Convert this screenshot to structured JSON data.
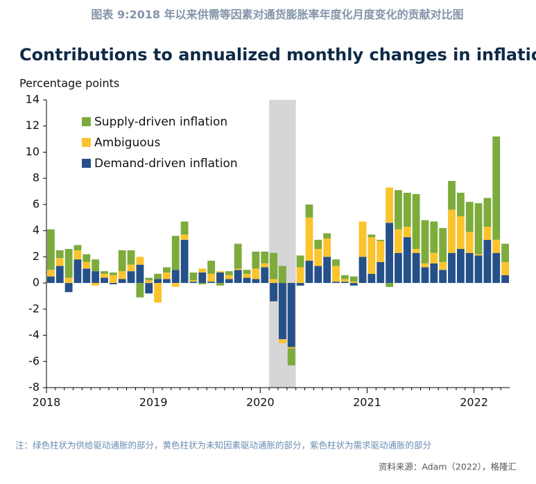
{
  "header": "图表 9:2018 年以来供需等因素对通货膨胀率年度化月度变化的贡献对比图",
  "chart_data": {
    "type": "stacked_bar",
    "title": "Contributions to annualized monthly changes in inflation",
    "ylabel": "Percentage points",
    "categories": [
      "2018",
      null,
      null,
      null,
      null,
      null,
      null,
      null,
      null,
      null,
      null,
      null,
      "2019",
      null,
      null,
      null,
      null,
      null,
      null,
      null,
      null,
      null,
      null,
      null,
      "2020",
      null,
      null,
      null,
      null,
      null,
      null,
      null,
      null,
      null,
      null,
      null,
      "2021",
      null,
      null,
      null,
      null,
      null,
      null,
      null,
      null,
      null,
      null,
      null,
      "2022",
      null,
      null,
      null
    ],
    "series": [
      {
        "name": "Demand-driven inflation",
        "color": "#255089",
        "values": [
          0.5,
          1.3,
          -0.7,
          1.8,
          1.1,
          0.9,
          0.4,
          -0.1,
          0.3,
          0.9,
          1.4,
          -0.8,
          0.3,
          0.3,
          1.0,
          3.3,
          0.1,
          0.8,
          0.1,
          0.8,
          0.3,
          1.0,
          0.4,
          0.3,
          1.2,
          -1.4,
          -4.3,
          -4.9,
          -0.2,
          1.7,
          1.3,
          2.0,
          0.1,
          0.1,
          -0.2,
          2.0,
          0.7,
          1.6,
          4.6,
          2.3,
          3.5,
          2.3,
          1.2,
          1.5,
          1.0,
          2.3,
          2.6,
          2.3,
          2.1,
          3.3,
          2.3,
          0.6
        ]
      },
      {
        "name": "Ambiguous",
        "color": "#fbc42e",
        "values": [
          0.5,
          0.6,
          0.4,
          0.7,
          0.5,
          -0.2,
          0.3,
          0.6,
          0.6,
          0.5,
          0.6,
          0.2,
          -1.5,
          0.5,
          -0.3,
          0.4,
          0.1,
          0.3,
          0.6,
          0.1,
          0.3,
          0.1,
          0.3,
          0.8,
          0.3,
          0.3,
          -0.3,
          -0.1,
          1.2,
          3.3,
          1.3,
          1.4,
          1.2,
          0.2,
          0.1,
          2.7,
          2.8,
          1.6,
          2.7,
          1.8,
          0.8,
          0.3,
          0.3,
          0.8,
          0.6,
          3.3,
          2.5,
          1.6,
          0.1,
          1.0,
          1.0,
          1.0
        ]
      },
      {
        "name": "Supply-driven inflation",
        "color": "#7dab3c",
        "values": [
          3.1,
          0.6,
          2.2,
          0.4,
          0.6,
          0.9,
          0.2,
          0.2,
          1.6,
          1.1,
          -1.1,
          0.2,
          0.4,
          0.4,
          2.6,
          1.0,
          0.6,
          -0.1,
          1.0,
          -0.2,
          0.3,
          1.9,
          0.3,
          1.3,
          0.9,
          2.0,
          1.3,
          -1.3,
          0.9,
          1.0,
          0.7,
          0.4,
          0.5,
          0.3,
          0.4,
          0.0,
          0.2,
          0.1,
          -0.3,
          3.0,
          2.6,
          4.2,
          3.3,
          2.4,
          2.6,
          2.2,
          1.8,
          2.3,
          3.9,
          2.2,
          7.9,
          1.4
        ]
      }
    ],
    "shaded_range": [
      25,
      27
    ],
    "ylim": [
      -8,
      14
    ],
    "yticks": [
      -8,
      -6,
      -4,
      -2,
      0,
      2,
      4,
      6,
      8,
      10,
      12,
      14
    ],
    "legend": "upper left"
  },
  "note": "注：绿色柱状为供给驱动通胀的部分，黄色柱状为未知因素驱动通胀的部分，紫色柱状为需求驱动通胀的部分",
  "source": "资料来源：Adam（2022），格隆汇"
}
